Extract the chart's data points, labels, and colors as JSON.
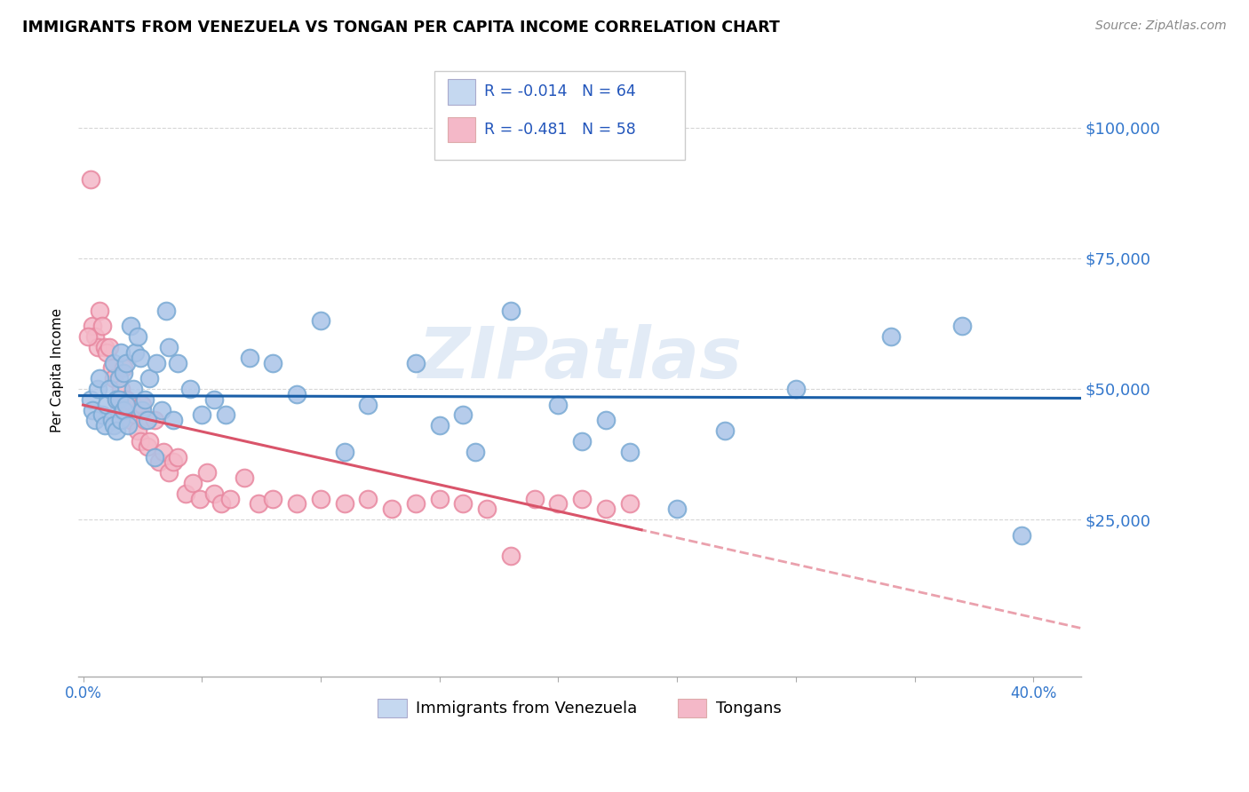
{
  "title": "IMMIGRANTS FROM VENEZUELA VS TONGAN PER CAPITA INCOME CORRELATION CHART",
  "source": "Source: ZipAtlas.com",
  "ylabel": "Per Capita Income",
  "ytick_labels": [
    "$25,000",
    "$50,000",
    "$75,000",
    "$100,000"
  ],
  "ytick_values": [
    25000,
    50000,
    75000,
    100000
  ],
  "ylim": [
    -5000,
    112000
  ],
  "xlim": [
    -0.002,
    0.42
  ],
  "watermark": "ZIPatlas",
  "blue_color": "#aac4e8",
  "pink_color": "#f4b8c8",
  "blue_edge": "#7aaad4",
  "pink_edge": "#e888a0",
  "line_blue": "#1a5fa8",
  "line_pink": "#d9546a",
  "legend_blue_fill": "#c5d8f0",
  "legend_pink_fill": "#f4b8c8",
  "venezuela_x": [
    0.003,
    0.004,
    0.005,
    0.006,
    0.007,
    0.008,
    0.009,
    0.01,
    0.011,
    0.012,
    0.013,
    0.013,
    0.014,
    0.014,
    0.015,
    0.015,
    0.016,
    0.016,
    0.017,
    0.017,
    0.018,
    0.018,
    0.019,
    0.02,
    0.021,
    0.022,
    0.023,
    0.024,
    0.025,
    0.026,
    0.027,
    0.028,
    0.03,
    0.031,
    0.033,
    0.035,
    0.036,
    0.038,
    0.04,
    0.045,
    0.05,
    0.055,
    0.06,
    0.07,
    0.08,
    0.09,
    0.1,
    0.11,
    0.12,
    0.14,
    0.16,
    0.18,
    0.2,
    0.22,
    0.25,
    0.27,
    0.3,
    0.34,
    0.37,
    0.395,
    0.15,
    0.165,
    0.21,
    0.23
  ],
  "venezuela_y": [
    48000,
    46000,
    44000,
    50000,
    52000,
    45000,
    43000,
    47000,
    50000,
    44000,
    55000,
    43000,
    48000,
    42000,
    52000,
    48000,
    57000,
    44000,
    53000,
    46000,
    47000,
    55000,
    43000,
    62000,
    50000,
    57000,
    60000,
    56000,
    46000,
    48000,
    44000,
    52000,
    37000,
    55000,
    46000,
    65000,
    58000,
    44000,
    55000,
    50000,
    45000,
    48000,
    45000,
    56000,
    55000,
    49000,
    63000,
    38000,
    47000,
    55000,
    45000,
    65000,
    47000,
    44000,
    27000,
    42000,
    50000,
    60000,
    62000,
    22000,
    43000,
    38000,
    40000,
    38000
  ],
  "tongan_x": [
    0.003,
    0.004,
    0.005,
    0.006,
    0.007,
    0.008,
    0.009,
    0.01,
    0.011,
    0.012,
    0.013,
    0.014,
    0.015,
    0.016,
    0.017,
    0.018,
    0.019,
    0.02,
    0.021,
    0.022,
    0.023,
    0.024,
    0.025,
    0.026,
    0.027,
    0.028,
    0.03,
    0.032,
    0.034,
    0.036,
    0.038,
    0.04,
    0.043,
    0.046,
    0.049,
    0.052,
    0.055,
    0.058,
    0.062,
    0.068,
    0.074,
    0.08,
    0.09,
    0.1,
    0.11,
    0.12,
    0.13,
    0.14,
    0.15,
    0.16,
    0.17,
    0.18,
    0.19,
    0.2,
    0.21,
    0.22,
    0.002,
    0.23
  ],
  "tongan_y": [
    90000,
    62000,
    60000,
    58000,
    65000,
    62000,
    58000,
    57000,
    58000,
    54000,
    52000,
    48000,
    46000,
    50000,
    54000,
    48000,
    46000,
    44000,
    47000,
    45000,
    42000,
    40000,
    47000,
    44000,
    39000,
    40000,
    44000,
    36000,
    38000,
    34000,
    36000,
    37000,
    30000,
    32000,
    29000,
    34000,
    30000,
    28000,
    29000,
    33000,
    28000,
    29000,
    28000,
    29000,
    28000,
    29000,
    27000,
    28000,
    29000,
    28000,
    27000,
    18000,
    29000,
    28000,
    29000,
    27000,
    60000,
    28000
  ]
}
